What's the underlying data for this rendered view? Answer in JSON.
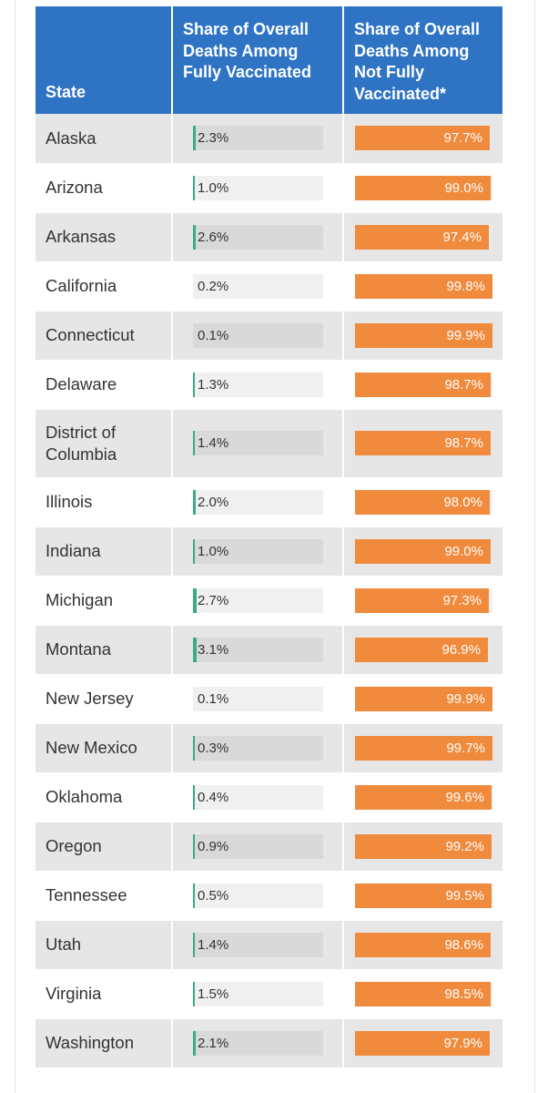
{
  "header": {
    "state": "State",
    "vaccinated": "Share of Overall Deaths Among Fully Vaccinated",
    "not_vaccinated": "Share of Overall Deaths Among Not Fully Vaccinated*"
  },
  "colors": {
    "header_bg": "#2f74c4",
    "vaccinated_bar": "#3aab86",
    "not_vaccinated_bar": "#f08a3c"
  },
  "chart_data": {
    "type": "table",
    "columns": [
      "State",
      "Share of Overall Deaths Among Fully Vaccinated",
      "Share of Overall Deaths Among Not Fully Vaccinated*"
    ],
    "rows": [
      {
        "state": "Alaska",
        "vaccinated": 2.3,
        "vaccinated_label": "2.3%",
        "not_vaccinated": 97.7,
        "not_vaccinated_label": "97.7%"
      },
      {
        "state": "Arizona",
        "vaccinated": 1.0,
        "vaccinated_label": "1.0%",
        "not_vaccinated": 99.0,
        "not_vaccinated_label": "99.0%"
      },
      {
        "state": "Arkansas",
        "vaccinated": 2.6,
        "vaccinated_label": "2.6%",
        "not_vaccinated": 97.4,
        "not_vaccinated_label": "97.4%"
      },
      {
        "state": "California",
        "vaccinated": 0.2,
        "vaccinated_label": "0.2%",
        "not_vaccinated": 99.8,
        "not_vaccinated_label": "99.8%"
      },
      {
        "state": "Connecticut",
        "vaccinated": 0.1,
        "vaccinated_label": "0.1%",
        "not_vaccinated": 99.9,
        "not_vaccinated_label": "99.9%"
      },
      {
        "state": "Delaware",
        "vaccinated": 1.3,
        "vaccinated_label": "1.3%",
        "not_vaccinated": 98.7,
        "not_vaccinated_label": "98.7%"
      },
      {
        "state": "District of Columbia",
        "vaccinated": 1.4,
        "vaccinated_label": "1.4%",
        "not_vaccinated": 98.7,
        "not_vaccinated_label": "98.7%"
      },
      {
        "state": "Illinois",
        "vaccinated": 2.0,
        "vaccinated_label": "2.0%",
        "not_vaccinated": 98.0,
        "not_vaccinated_label": "98.0%"
      },
      {
        "state": "Indiana",
        "vaccinated": 1.0,
        "vaccinated_label": "1.0%",
        "not_vaccinated": 99.0,
        "not_vaccinated_label": "99.0%"
      },
      {
        "state": "Michigan",
        "vaccinated": 2.7,
        "vaccinated_label": "2.7%",
        "not_vaccinated": 97.3,
        "not_vaccinated_label": "97.3%"
      },
      {
        "state": "Montana",
        "vaccinated": 3.1,
        "vaccinated_label": "3.1%",
        "not_vaccinated": 96.9,
        "not_vaccinated_label": "96.9%"
      },
      {
        "state": "New Jersey",
        "vaccinated": 0.1,
        "vaccinated_label": "0.1%",
        "not_vaccinated": 99.9,
        "not_vaccinated_label": "99.9%"
      },
      {
        "state": "New Mexico",
        "vaccinated": 0.3,
        "vaccinated_label": "0.3%",
        "not_vaccinated": 99.7,
        "not_vaccinated_label": "99.7%"
      },
      {
        "state": "Oklahoma",
        "vaccinated": 0.4,
        "vaccinated_label": "0.4%",
        "not_vaccinated": 99.6,
        "not_vaccinated_label": "99.6%"
      },
      {
        "state": "Oregon",
        "vaccinated": 0.9,
        "vaccinated_label": "0.9%",
        "not_vaccinated": 99.2,
        "not_vaccinated_label": "99.2%"
      },
      {
        "state": "Tennessee",
        "vaccinated": 0.5,
        "vaccinated_label": "0.5%",
        "not_vaccinated": 99.5,
        "not_vaccinated_label": "99.5%"
      },
      {
        "state": "Utah",
        "vaccinated": 1.4,
        "vaccinated_label": "1.4%",
        "not_vaccinated": 98.6,
        "not_vaccinated_label": "98.6%"
      },
      {
        "state": "Virginia",
        "vaccinated": 1.5,
        "vaccinated_label": "1.5%",
        "not_vaccinated": 98.5,
        "not_vaccinated_label": "98.5%"
      },
      {
        "state": "Washington",
        "vaccinated": 2.1,
        "vaccinated_label": "2.1%",
        "not_vaccinated": 97.9,
        "not_vaccinated_label": "97.9%"
      }
    ]
  }
}
